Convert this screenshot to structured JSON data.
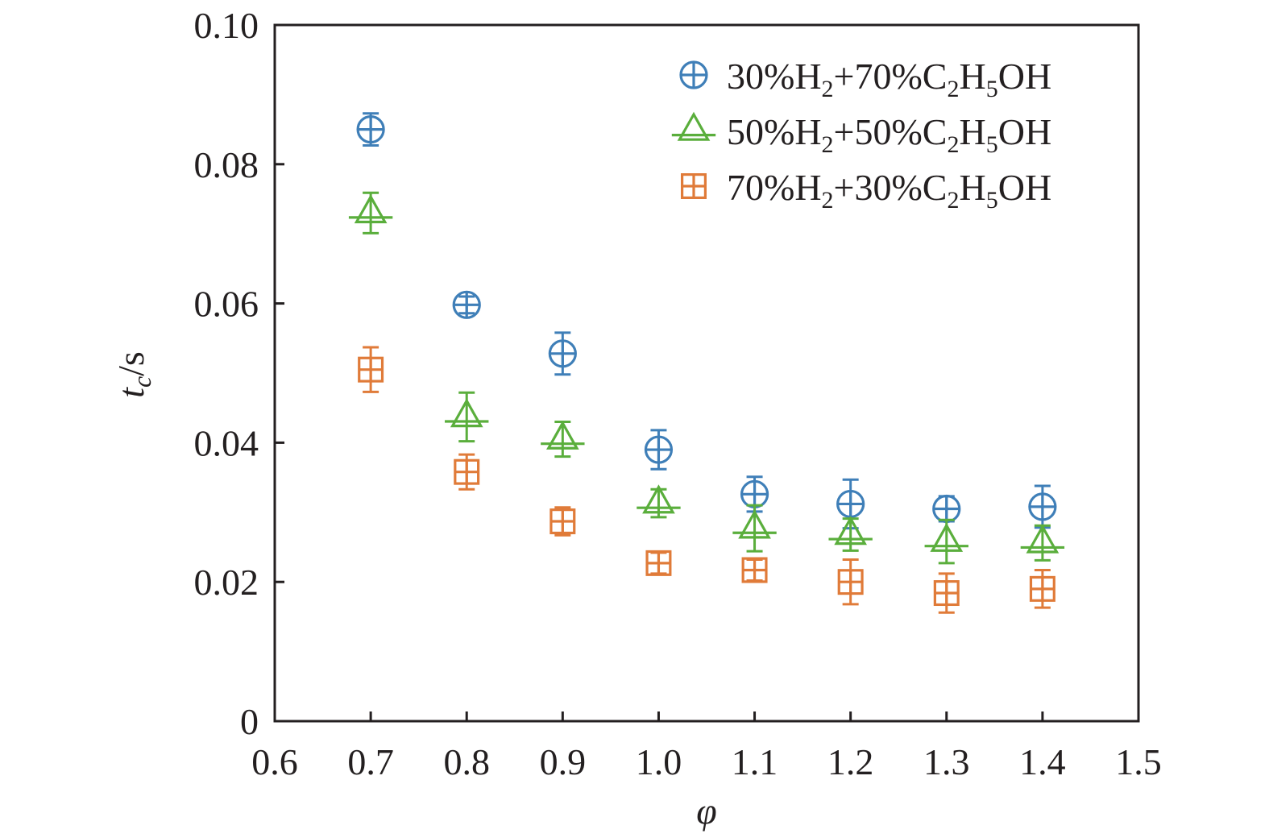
{
  "chart_data": {
    "type": "scatter",
    "title": "",
    "xlabel": "φ",
    "ylabel": {
      "main": "t",
      "sub": "c",
      "unit": "/s"
    },
    "xlim": [
      0.6,
      1.5
    ],
    "ylim": [
      0,
      0.1
    ],
    "xticks": [
      "0.6",
      "0.7",
      "0.8",
      "0.9",
      "1.0",
      "1.1",
      "1.2",
      "1.3",
      "1.4",
      "1.5"
    ],
    "yticks": [
      "0",
      "0.02",
      "0.04",
      "0.06",
      "0.08",
      "0.10"
    ],
    "xtick_values": [
      0.6,
      0.7,
      0.8,
      0.9,
      1.0,
      1.1,
      1.2,
      1.3,
      1.4,
      1.5
    ],
    "ytick_values": [
      0,
      0.02,
      0.04,
      0.06,
      0.08,
      0.1
    ],
    "grid": false,
    "legend_position": "top-right",
    "series": [
      {
        "legend": [
          {
            "t": "30%H",
            "s": ""
          },
          {
            "t": "2",
            "s": "sub"
          },
          {
            "t": "+70%C",
            "s": ""
          },
          {
            "t": "2",
            "s": "sub"
          },
          {
            "t": "H",
            "s": ""
          },
          {
            "t": "5",
            "s": "sub"
          },
          {
            "t": "OH",
            "s": ""
          }
        ],
        "marker": "circle-plus",
        "color": "#3f7fb8",
        "x": [
          0.7,
          0.8,
          0.9,
          1.0,
          1.1,
          1.2,
          1.3,
          1.4
        ],
        "y": [
          0.085,
          0.0598,
          0.0528,
          0.039,
          0.0326,
          0.0312,
          0.0305,
          0.0308
        ],
        "err": [
          0.0023,
          0.0012,
          0.003,
          0.0028,
          0.0025,
          0.0035,
          0.0018,
          0.003
        ]
      },
      {
        "legend": [
          {
            "t": "50%H",
            "s": ""
          },
          {
            "t": "2",
            "s": "sub"
          },
          {
            "t": "+50%C",
            "s": ""
          },
          {
            "t": "2",
            "s": "sub"
          },
          {
            "t": "H",
            "s": ""
          },
          {
            "t": "5",
            "s": "sub"
          },
          {
            "t": "OH",
            "s": ""
          }
        ],
        "marker": "triangle-plus",
        "color": "#5aae3c",
        "x": [
          0.7,
          0.8,
          0.9,
          1.0,
          1.1,
          1.2,
          1.3,
          1.4
        ],
        "y": [
          0.073,
          0.0437,
          0.0405,
          0.0313,
          0.0277,
          0.0268,
          0.0258,
          0.0256
        ],
        "err": [
          0.0029,
          0.0035,
          0.0025,
          0.002,
          0.0033,
          0.0023,
          0.0031,
          0.0025
        ]
      },
      {
        "legend": [
          {
            "t": "70%H",
            "s": ""
          },
          {
            "t": "2",
            "s": "sub"
          },
          {
            "t": "+30%C",
            "s": ""
          },
          {
            "t": "2",
            "s": "sub"
          },
          {
            "t": "H",
            "s": ""
          },
          {
            "t": "5",
            "s": "sub"
          },
          {
            "t": "OH",
            "s": ""
          }
        ],
        "marker": "square-plus",
        "color": "#e07b39",
        "x": [
          0.7,
          0.8,
          0.9,
          1.0,
          1.1,
          1.2,
          1.3,
          1.4
        ],
        "y": [
          0.0505,
          0.0358,
          0.0287,
          0.0227,
          0.0217,
          0.02,
          0.0184,
          0.019
        ],
        "err": [
          0.0032,
          0.0025,
          0.002,
          0.0015,
          0.0015,
          0.0032,
          0.0028,
          0.0027
        ]
      }
    ]
  }
}
